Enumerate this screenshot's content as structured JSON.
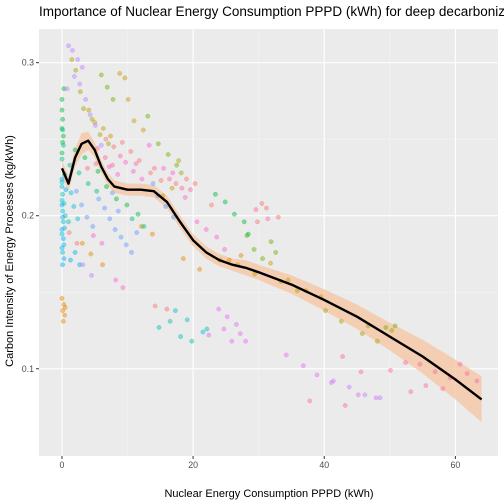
{
  "chart_data": {
    "type": "scatter",
    "title": "Importance of  Nuclear Energy Consumption PPPD (kWh)  for deep decarbonization",
    "xlabel": "Nuclear Energy Consumption PPPD (kWh)",
    "ylabel": "Carbon Intensity of Energy Processes (kg/kWh)",
    "xlim": [
      -3.5,
      66.5
    ],
    "ylim": [
      0.043,
      0.322
    ],
    "x_ticks": [
      0,
      20,
      40,
      60
    ],
    "x_tick_labels": [
      "0",
      "20",
      "40",
      "60"
    ],
    "y_ticks": [
      0.1,
      0.2,
      0.3
    ],
    "y_tick_labels": [
      "0.1",
      "0.2",
      "0.3"
    ],
    "grid": true,
    "legend": "none",
    "colors": {
      "panel_background": "#ebebeb",
      "grid_major": "#ffffff",
      "smooth_line": "#000000",
      "confidence_band": "#f4c9a8",
      "point_palette": [
        "#f8766d",
        "#e58700",
        "#c99800",
        "#a3a500",
        "#6bb100",
        "#00ba38",
        "#00bf7d",
        "#00c0af",
        "#00bcd8",
        "#00b0f6",
        "#619cff",
        "#b983ff",
        "#e76bf3",
        "#fd61d1",
        "#ff67a4"
      ]
    },
    "smooth": {
      "x": [
        0,
        1,
        2,
        3,
        4,
        5,
        6,
        7,
        8,
        10,
        12,
        14,
        16,
        18,
        20,
        22,
        24,
        26,
        28,
        30,
        35,
        40,
        45,
        50,
        55,
        60,
        64
      ],
      "y": [
        0.231,
        0.221,
        0.238,
        0.247,
        0.249,
        0.243,
        0.232,
        0.224,
        0.219,
        0.217,
        0.217,
        0.216,
        0.209,
        0.196,
        0.184,
        0.176,
        0.171,
        0.168,
        0.166,
        0.163,
        0.155,
        0.145,
        0.134,
        0.121,
        0.108,
        0.093,
        0.08
      ],
      "ci_lower": [
        0.226,
        0.216,
        0.232,
        0.24,
        0.243,
        0.238,
        0.228,
        0.22,
        0.215,
        0.213,
        0.213,
        0.212,
        0.205,
        0.192,
        0.18,
        0.172,
        0.167,
        0.164,
        0.161,
        0.158,
        0.149,
        0.138,
        0.126,
        0.112,
        0.097,
        0.08,
        0.065
      ],
      "ci_upper": [
        0.236,
        0.226,
        0.244,
        0.254,
        0.255,
        0.248,
        0.236,
        0.228,
        0.223,
        0.221,
        0.221,
        0.22,
        0.213,
        0.2,
        0.188,
        0.18,
        0.175,
        0.172,
        0.171,
        0.168,
        0.161,
        0.152,
        0.142,
        0.13,
        0.119,
        0.106,
        0.095
      ]
    },
    "series": [
      {
        "color": "#f8766d",
        "points": [
          [
            9.2,
            0.248
          ],
          [
            10.5,
            0.242
          ],
          [
            11.8,
            0.236
          ],
          [
            13.5,
            0.228
          ],
          [
            15.1,
            0.223
          ],
          [
            17.4,
            0.221
          ],
          [
            19.0,
            0.224
          ],
          [
            20.3,
            0.221
          ],
          [
            22.8,
            0.207
          ],
          [
            1.1,
            0.189
          ],
          [
            2.3,
            0.182
          ],
          [
            3.9,
            0.231
          ],
          [
            5.2,
            0.234
          ],
          [
            6.7,
            0.25
          ],
          [
            7.9,
            0.245
          ],
          [
            30.5,
            0.208
          ],
          [
            31.2,
            0.205
          ],
          [
            33.0,
            0.199
          ],
          [
            29.8,
            0.196
          ],
          [
            14.2,
            0.141
          ],
          [
            16.0,
            0.139
          ]
        ]
      },
      {
        "color": "#e58700",
        "points": [
          [
            0.3,
            0.142
          ],
          [
            0.1,
            0.138
          ],
          [
            0.4,
            0.135
          ],
          [
            0.2,
            0.131
          ],
          [
            0.0,
            0.146
          ],
          [
            0.5,
            0.14
          ],
          [
            3.1,
            0.182
          ],
          [
            4.4,
            0.175
          ],
          [
            6.2,
            0.168
          ],
          [
            12.1,
            0.193
          ],
          [
            13.8,
            0.188
          ],
          [
            18.5,
            0.172
          ],
          [
            21.0,
            0.165
          ],
          [
            25.5,
            0.171
          ],
          [
            27.3,
            0.174
          ]
        ]
      },
      {
        "color": "#c99800",
        "points": [
          [
            8.8,
            0.293
          ],
          [
            9.6,
            0.29
          ],
          [
            10.1,
            0.276
          ],
          [
            11.0,
            0.262
          ],
          [
            12.4,
            0.256
          ],
          [
            4.1,
            0.269
          ],
          [
            5.0,
            0.261
          ],
          [
            6.3,
            0.257
          ],
          [
            7.4,
            0.252
          ],
          [
            15.4,
            0.213
          ],
          [
            16.8,
            0.218
          ],
          [
            24.1,
            0.171
          ],
          [
            26.8,
            0.168
          ],
          [
            29.4,
            0.162
          ],
          [
            31.8,
            0.169
          ],
          [
            34.5,
            0.158
          ],
          [
            37.2,
            0.151
          ],
          [
            39.5,
            0.147
          ]
        ]
      },
      {
        "color": "#a3a500",
        "points": [
          [
            1.5,
            0.302
          ],
          [
            2.1,
            0.295
          ],
          [
            2.8,
            0.281
          ],
          [
            3.3,
            0.27
          ],
          [
            4.6,
            0.263
          ],
          [
            5.8,
            0.253
          ],
          [
            7.1,
            0.247
          ],
          [
            17.8,
            0.236
          ],
          [
            18.2,
            0.228
          ],
          [
            33.4,
            0.157
          ],
          [
            35.9,
            0.151
          ],
          [
            40.2,
            0.138
          ],
          [
            42.6,
            0.131
          ],
          [
            45.8,
            0.123
          ],
          [
            48.1,
            0.118
          ],
          [
            50.3,
            0.125
          ],
          [
            46.7,
            0.128
          ]
        ]
      },
      {
        "color": "#6bb100",
        "points": [
          [
            6.0,
            0.292
          ],
          [
            6.9,
            0.284
          ],
          [
            7.8,
            0.276
          ],
          [
            13.1,
            0.265
          ],
          [
            14.7,
            0.247
          ],
          [
            16.2,
            0.24
          ],
          [
            17.5,
            0.233
          ],
          [
            28.2,
            0.187
          ],
          [
            29.3,
            0.178
          ],
          [
            30.6,
            0.172
          ],
          [
            31.9,
            0.183
          ],
          [
            32.6,
            0.176
          ],
          [
            49.4,
            0.127
          ],
          [
            50.8,
            0.128
          ]
        ]
      },
      {
        "color": "#00ba38",
        "points": [
          [
            0.0,
            0.276
          ],
          [
            0.0,
            0.269
          ],
          [
            0.1,
            0.263
          ],
          [
            0.0,
            0.257
          ],
          [
            0.2,
            0.252
          ],
          [
            0.1,
            0.248
          ],
          [
            0.0,
            0.241
          ],
          [
            0.3,
            0.283
          ],
          [
            2.0,
            0.243
          ],
          [
            3.5,
            0.238
          ],
          [
            5.5,
            0.229
          ],
          [
            6.8,
            0.219
          ],
          [
            8.3,
            0.211
          ],
          [
            9.9,
            0.207
          ],
          [
            11.6,
            0.201
          ],
          [
            23.4,
            0.214
          ],
          [
            24.9,
            0.209
          ],
          [
            26.3,
            0.201
          ],
          [
            27.8,
            0.196
          ],
          [
            28.4,
            0.188
          ]
        ]
      },
      {
        "color": "#00bf7d",
        "points": [
          [
            0.1,
            0.256
          ],
          [
            0.2,
            0.246
          ],
          [
            0.0,
            0.237
          ],
          [
            0.4,
            0.227
          ],
          [
            1.2,
            0.233
          ],
          [
            2.6,
            0.228
          ],
          [
            4.0,
            0.221
          ],
          [
            5.3,
            0.216
          ],
          [
            10.7,
            0.198
          ],
          [
            12.5,
            0.193
          ]
        ]
      },
      {
        "color": "#00c0af",
        "points": [
          [
            0.0,
            0.222
          ],
          [
            0.1,
            0.214
          ],
          [
            0.3,
            0.208
          ],
          [
            0.5,
            0.2
          ],
          [
            1.0,
            0.196
          ],
          [
            14.8,
            0.127
          ],
          [
            16.5,
            0.131
          ],
          [
            18.1,
            0.121
          ],
          [
            19.8,
            0.118
          ],
          [
            22.1,
            0.126
          ]
        ]
      },
      {
        "color": "#00bcd8",
        "points": [
          [
            0.0,
            0.219
          ],
          [
            0.0,
            0.21
          ],
          [
            0.1,
            0.203
          ],
          [
            0.2,
            0.196
          ],
          [
            0.0,
            0.188
          ],
          [
            0.3,
            0.181
          ],
          [
            0.1,
            0.176
          ],
          [
            0.4,
            0.192
          ],
          [
            1.4,
            0.215
          ],
          [
            1.8,
            0.206
          ],
          [
            2.4,
            0.198
          ],
          [
            17.3,
            0.138
          ],
          [
            19.1,
            0.132
          ],
          [
            21.5,
            0.124
          ]
        ]
      },
      {
        "color": "#00b0f6",
        "points": [
          [
            0.0,
            0.207
          ],
          [
            0.1,
            0.199
          ],
          [
            0.0,
            0.191
          ],
          [
            0.2,
            0.185
          ],
          [
            0.0,
            0.179
          ],
          [
            0.3,
            0.172
          ],
          [
            0.1,
            0.168
          ],
          [
            0.0,
            0.224
          ],
          [
            0.6,
            0.217
          ],
          [
            1.3,
            0.171
          ],
          [
            2.0,
            0.176
          ],
          [
            2.7,
            0.168
          ]
        ]
      },
      {
        "color": "#619cff",
        "points": [
          [
            2.2,
            0.216
          ],
          [
            3.0,
            0.207
          ],
          [
            3.8,
            0.199
          ],
          [
            4.7,
            0.193
          ],
          [
            5.6,
            0.211
          ],
          [
            6.5,
            0.205
          ],
          [
            7.3,
            0.198
          ],
          [
            8.1,
            0.191
          ],
          [
            9.0,
            0.186
          ],
          [
            9.8,
            0.181
          ],
          [
            10.6,
            0.176
          ],
          [
            11.4,
            0.189
          ],
          [
            8.6,
            0.203
          ],
          [
            7.7,
            0.215
          ],
          [
            13.9,
            0.221
          ],
          [
            14.6,
            0.213
          ],
          [
            15.8,
            0.206
          ],
          [
            17.0,
            0.199
          ]
        ]
      },
      {
        "color": "#b983ff",
        "points": [
          [
            1.0,
            0.311
          ],
          [
            1.6,
            0.308
          ],
          [
            2.4,
            0.302
          ],
          [
            3.1,
            0.297
          ],
          [
            1.9,
            0.291
          ],
          [
            2.7,
            0.286
          ],
          [
            0.8,
            0.283
          ],
          [
            3.6,
            0.276
          ],
          [
            4.3,
            0.266
          ],
          [
            5.1,
            0.259
          ],
          [
            6.0,
            0.246
          ],
          [
            3.2,
            0.168
          ],
          [
            4.5,
            0.161
          ],
          [
            41.4,
            0.092
          ],
          [
            43.8,
            0.088
          ],
          [
            46.2,
            0.083
          ],
          [
            48.5,
            0.081
          ]
        ]
      },
      {
        "color": "#e76bf3",
        "points": [
          [
            23.9,
            0.139
          ],
          [
            25.2,
            0.134
          ],
          [
            26.6,
            0.129
          ],
          [
            24.7,
            0.126
          ],
          [
            22.4,
            0.122
          ],
          [
            25.9,
            0.118
          ],
          [
            27.2,
            0.123
          ],
          [
            28.0,
            0.118
          ],
          [
            34.2,
            0.109
          ],
          [
            36.8,
            0.102
          ],
          [
            38.9,
            0.096
          ],
          [
            41.1,
            0.091
          ],
          [
            45.2,
            0.083
          ],
          [
            47.9,
            0.081
          ]
        ]
      },
      {
        "color": "#fd61d1",
        "points": [
          [
            7.2,
            0.232
          ],
          [
            8.5,
            0.227
          ],
          [
            9.7,
            0.235
          ],
          [
            10.9,
            0.229
          ],
          [
            12.2,
            0.224
          ],
          [
            13.3,
            0.246
          ],
          [
            15.5,
            0.231
          ],
          [
            16.9,
            0.228
          ],
          [
            18.8,
            0.212
          ],
          [
            20.6,
            0.196
          ],
          [
            22.0,
            0.191
          ],
          [
            23.6,
            0.186
          ],
          [
            24.8,
            0.178
          ],
          [
            4.8,
            0.187
          ],
          [
            6.1,
            0.182
          ],
          [
            8.2,
            0.158
          ],
          [
            9.3,
            0.153
          ]
        ]
      },
      {
        "color": "#ff67a4",
        "points": [
          [
            5.4,
            0.244
          ],
          [
            6.6,
            0.238
          ],
          [
            7.7,
            0.233
          ],
          [
            8.9,
            0.239
          ],
          [
            11.3,
            0.234
          ],
          [
            14.1,
            0.231
          ],
          [
            16.4,
            0.224
          ],
          [
            18.3,
            0.218
          ],
          [
            19.6,
            0.217
          ],
          [
            29.6,
            0.204
          ],
          [
            31.4,
            0.198
          ],
          [
            42.8,
            0.108
          ],
          [
            45.6,
            0.098
          ],
          [
            50.1,
            0.099
          ],
          [
            52.4,
            0.104
          ],
          [
            54.6,
            0.103
          ],
          [
            56.9,
            0.098
          ],
          [
            59.2,
            0.094
          ],
          [
            60.7,
            0.103
          ],
          [
            61.8,
            0.097
          ],
          [
            63.3,
            0.092
          ],
          [
            58.1,
            0.087
          ],
          [
            55.5,
            0.089
          ],
          [
            53.2,
            0.085
          ],
          [
            37.8,
            0.079
          ],
          [
            43.2,
            0.076
          ]
        ]
      }
    ]
  }
}
